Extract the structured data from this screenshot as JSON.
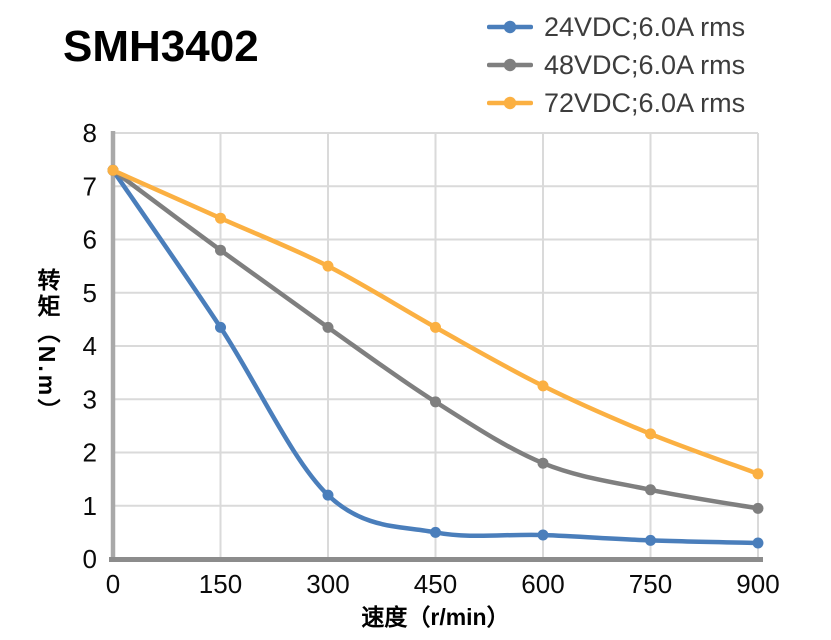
{
  "page": {
    "title": "SMH3402"
  },
  "chart_data": {
    "type": "line",
    "title": "SMH3402",
    "x": [
      0,
      150,
      300,
      450,
      600,
      750,
      900
    ],
    "series": [
      {
        "name": "24VDC;6.0A rms",
        "color": "#4A7EBB",
        "values": [
          7.3,
          4.35,
          1.2,
          0.5,
          0.45,
          0.35,
          0.3
        ]
      },
      {
        "name": "48VDC;6.0A rms",
        "color": "#7F7F7F",
        "values": [
          7.3,
          5.8,
          4.35,
          2.95,
          1.8,
          1.3,
          0.95
        ]
      },
      {
        "name": "72VDC;6.0A rms",
        "color": "#FBB042",
        "values": [
          7.3,
          6.4,
          5.5,
          4.35,
          3.25,
          2.35,
          1.6
        ]
      }
    ],
    "xlabel": "速度（r/min）",
    "ylabel": "转矩（N.m）",
    "xlim": [
      0,
      900
    ],
    "ylim": [
      0,
      8
    ],
    "xticks": [
      0,
      150,
      300,
      450,
      600,
      750,
      900
    ],
    "yticks": [
      0,
      1,
      2,
      3,
      4,
      5,
      6,
      7,
      8
    ],
    "grid": true,
    "legend_position": "top-right",
    "marker": "circle",
    "smooth": true,
    "colors": {
      "gridline": "#DADADA",
      "y_axis": "#A9A9A9",
      "x_axis": "#8C8C8C",
      "tick_label": "#0a0a0a",
      "legend_text": "#3d3d3d",
      "title_text": "#000000"
    }
  }
}
